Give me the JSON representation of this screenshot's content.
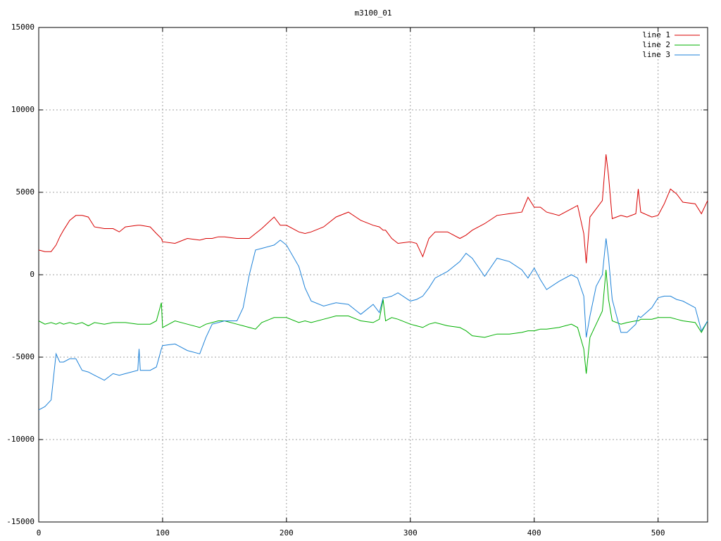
{
  "chart_data": {
    "type": "line",
    "title": "m3100_01",
    "x": [
      0,
      5,
      10,
      14,
      17,
      20,
      25,
      30,
      35,
      40,
      45,
      53,
      60,
      65,
      70,
      80,
      81,
      82,
      90,
      95,
      99,
      100,
      110,
      120,
      130,
      135,
      140,
      145,
      150,
      160,
      165,
      170,
      175,
      180,
      190,
      195,
      200,
      210,
      215,
      220,
      230,
      240,
      250,
      260,
      270,
      275,
      278,
      280,
      285,
      290,
      300,
      305,
      310,
      315,
      320,
      330,
      340,
      345,
      350,
      360,
      370,
      380,
      390,
      395,
      400,
      405,
      410,
      420,
      430,
      435,
      440,
      442,
      445,
      450,
      455,
      458,
      460,
      463,
      470,
      475,
      482,
      484,
      486,
      495,
      500,
      505,
      510,
      515,
      520,
      530,
      535,
      540
    ],
    "series": [
      {
        "name": "line 1",
        "color": "#d80000",
        "values": [
          1500,
          1400,
          1400,
          1800,
          2300,
          2700,
          3300,
          3600,
          3600,
          3500,
          2900,
          2800,
          2800,
          2600,
          2900,
          3000,
          3000,
          3000,
          2900,
          2500,
          2200,
          2000,
          1900,
          2200,
          2100,
          2200,
          2200,
          2300,
          2300,
          2200,
          2200,
          2200,
          2500,
          2800,
          3500,
          3000,
          3000,
          2600,
          2500,
          2600,
          2900,
          3500,
          3800,
          3300,
          3000,
          2900,
          2700,
          2700,
          2200,
          1900,
          2000,
          1900,
          1100,
          2200,
          2600,
          2600,
          2200,
          2400,
          2700,
          3100,
          3600,
          3700,
          3800,
          4700,
          4100,
          4100,
          3800,
          3600,
          4000,
          4200,
          2500,
          700,
          3500,
          4000,
          4500,
          7300,
          6000,
          3400,
          3600,
          3500,
          3700,
          5200,
          3800,
          3500,
          3600,
          4300,
          5200,
          4900,
          4400,
          4300,
          3700,
          4500
        ]
      },
      {
        "name": "line 2",
        "color": "#00b000",
        "values": [
          -2800,
          -3000,
          -2900,
          -3000,
          -2900,
          -3000,
          -2900,
          -3000,
          -2900,
          -3100,
          -2900,
          -3000,
          -2900,
          -2900,
          -2900,
          -3000,
          -3000,
          -3000,
          -3000,
          -2800,
          -1700,
          -3200,
          -2800,
          -3000,
          -3200,
          -3000,
          -2900,
          -2800,
          -2800,
          -3000,
          -3100,
          -3200,
          -3300,
          -2900,
          -2600,
          -2600,
          -2600,
          -2900,
          -2800,
          -2900,
          -2700,
          -2500,
          -2500,
          -2800,
          -2900,
          -2700,
          -1500,
          -2800,
          -2600,
          -2700,
          -3000,
          -3100,
          -3200,
          -3000,
          -2900,
          -3100,
          -3200,
          -3400,
          -3700,
          -3800,
          -3600,
          -3600,
          -3500,
          -3400,
          -3400,
          -3300,
          -3300,
          -3200,
          -3000,
          -3200,
          -4500,
          -6000,
          -3800,
          -3000,
          -2200,
          300,
          -1500,
          -2800,
          -3000,
          -2900,
          -2800,
          -2800,
          -2700,
          -2700,
          -2600,
          -2600,
          -2600,
          -2700,
          -2800,
          -2900,
          -3500,
          -2800
        ]
      },
      {
        "name": "line 3",
        "color": "#1e82d8",
        "values": [
          -8200,
          -8000,
          -7600,
          -4800,
          -5300,
          -5300,
          -5100,
          -5100,
          -5800,
          -5900,
          -6100,
          -6400,
          -6000,
          -6100,
          -6000,
          -5800,
          -4500,
          -5800,
          -5800,
          -5600,
          -4500,
          -4300,
          -4200,
          -4600,
          -4800,
          -3800,
          -3000,
          -2900,
          -2800,
          -2800,
          -2000,
          0,
          1500,
          1600,
          1800,
          2100,
          1800,
          500,
          -800,
          -1600,
          -1900,
          -1700,
          -1800,
          -2400,
          -1800,
          -2300,
          -1400,
          -1400,
          -1300,
          -1100,
          -1600,
          -1500,
          -1300,
          -800,
          -200,
          200,
          800,
          1300,
          1000,
          -100,
          1000,
          800,
          300,
          -200,
          400,
          -300,
          -900,
          -400,
          0,
          -200,
          -1300,
          -3800,
          -2500,
          -700,
          0,
          2200,
          1000,
          -1500,
          -3500,
          -3500,
          -3000,
          -2500,
          -2600,
          -2000,
          -1400,
          -1300,
          -1300,
          -1500,
          -1600,
          -2000,
          -3400,
          -2800
        ]
      }
    ],
    "xlim": [
      0,
      540
    ],
    "ylim": [
      -15000,
      15000
    ],
    "xticks": [
      0,
      100,
      200,
      300,
      400,
      500
    ],
    "yticks": [
      -15000,
      -10000,
      -5000,
      0,
      5000,
      10000,
      15000
    ],
    "grid": true,
    "legend": "top-right"
  }
}
